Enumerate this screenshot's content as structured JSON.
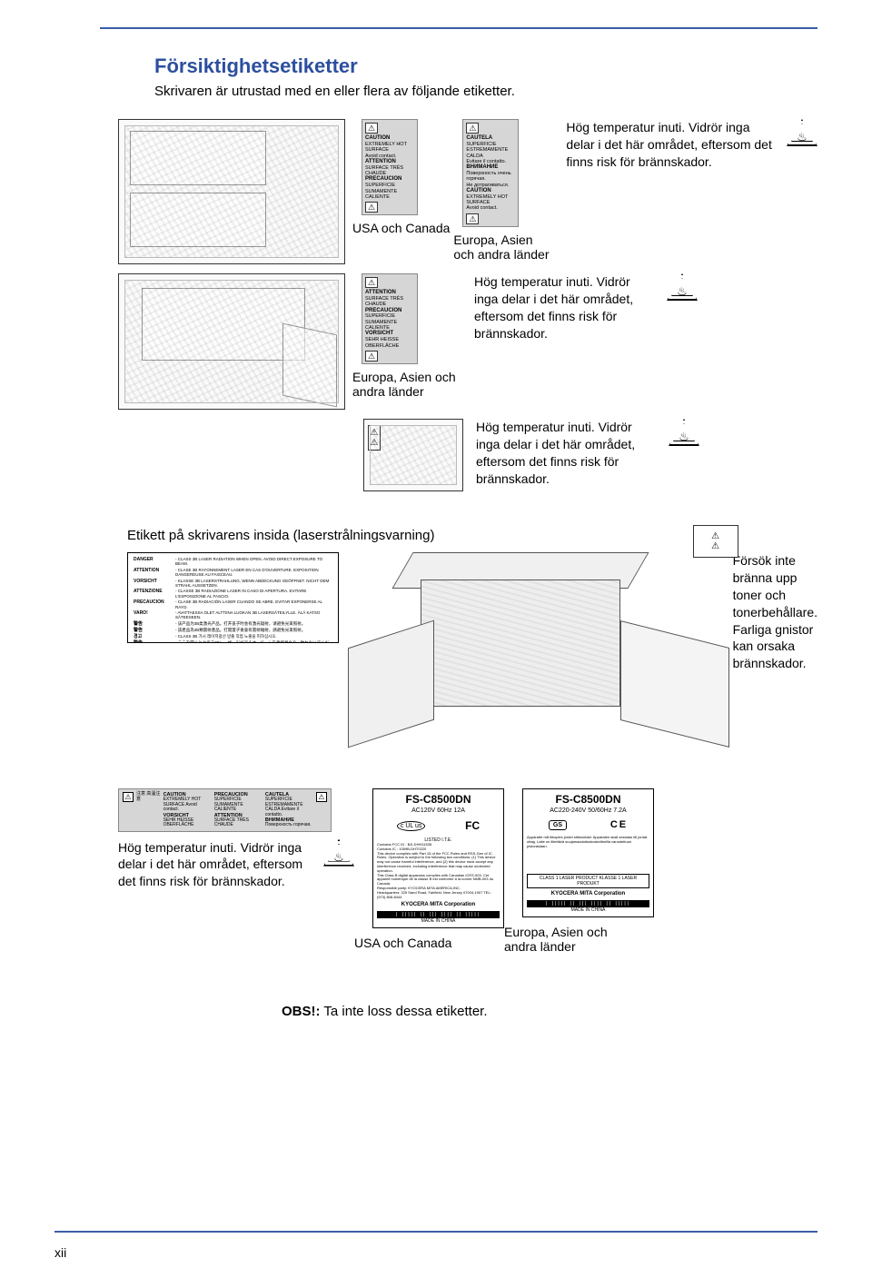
{
  "colors": {
    "accent": "#2c4f9e",
    "rule": "#3a5da8",
    "label_bg": "#d6d6d6"
  },
  "page_number": "xii",
  "heading": "Försiktighetsetiketter",
  "subtitle": "Skrivaren är utrustad med en eller flera av följande etiketter.",
  "warning": {
    "title": "Hög temperatur inuti.",
    "body": "Vidrör inga delar i det här området, eftersom det finns risk för brännskador."
  },
  "captions": {
    "usa_canada": "USA och Canada",
    "europe": "Europa, Asien och andra länder"
  },
  "label_usa": {
    "h1": "CAUTION",
    "t1": "EXTREMELY HOT SURFACE",
    "t1b": "Avoid contact.",
    "h2": "ATTENTION",
    "t2": "SURFACE TRÈS CHAUDE",
    "h3": "PRECAUCION",
    "t3": "SUPERFICIE SUMAMENTE CALIENTE"
  },
  "label_eu": {
    "h1": "CAUTELA",
    "t1": "SUPERFICIE ESTREMAMENTE CALDA",
    "t1b": "Evitare il contatto.",
    "h2": "ВНИМАНИЕ",
    "t2": "Поверхность очень горячая.",
    "t2b": "Не дотрагиваться.",
    "h3": "CAUTION",
    "t3": "EXTREMELY HOT SURFACE",
    "t3b": "Avoid contact."
  },
  "label_side": {
    "h1": "ATTENTION",
    "t1": "SURFACE TRÈS CHAUDE",
    "h2": "PRECAUCION",
    "t2": "SUPERFICIE SUMAMENTE CALIENTE",
    "h3": "VORSICHT",
    "t3": "SEHR HEISSE OBERFLÄCHE"
  },
  "section2": {
    "title": "Etikett på skrivarens insida (laserstrålningsvarning)",
    "box_rows": [
      {
        "k": "DANGER",
        "v": "- CLASS 3B LASER RADIATION WHEN OPEN. AVOID DIRECT EXPOSURE TO BEAM."
      },
      {
        "k": "ATTENTION",
        "v": "- CLASE 3B RAYONNEMENT LASER EN CAS D'OUVERTURE. EXPOSITION DANGEREUSE AU FAISCEAU."
      },
      {
        "k": "VORSICHT",
        "v": "- KLASSE 3B LASERSTRAHLUNG, WENN ABDECKUNG GEÖFFNET. NICHT DEM STRAHL AUSSETZEN."
      },
      {
        "k": "ATTENZIONE",
        "v": "- CLASSE 3B RADIAZIONE LASER IN CASO DI APERTURA. EVITARE L'ESPOSIZIONE AL FASCIO."
      },
      {
        "k": "PRECAUCION",
        "v": "- CLASE 3B RADIACIÓN LASER CUANDO SE ABRE. EVITAR EXPONERSE AL RAYO."
      },
      {
        "k": "VARO!",
        "v": "- AVATTAESSA OLET ALTTIINA LUOKAN 3B LASERSÄTEILYLLE. ÄLÄ KATSO SÄTEESEEN."
      },
      {
        "k": "警告",
        "v": "- 该产品为3B类激光产品。打开盖子时会有激光辐射，请避免光束照射。"
      },
      {
        "k": "警告",
        "v": "- 該產品為3B類雷射產品。打開蓋子後會有雷射輻射，請避免光束照射。"
      },
      {
        "k": "경고",
        "v": "- CLASS 3B 가시 레이저광선 방출  직접 노출을 피하십시오."
      },
      {
        "k": "警告",
        "v": "- ここを開くとクラス3Bレーザー光がでます。ビームを直接見たり、触れないでください。"
      }
    ],
    "toner_warning": "Försök inte bränna upp toner och tonerbehållare. Farliga gnistor kan orsaka brännskador."
  },
  "horiz_label": {
    "c1h": "CAUTION",
    "c1t": "EXTREMELY HOT SURFACE Avoid contact.",
    "c2h": "PRECAUCION",
    "c2t": "SUPERFICIE SUMAMENTE CALIENTE",
    "c3h": "CAUTELA",
    "c3t": "SUPERFICIE ESTREMAMENTE CALDA Evitare il contatto.",
    "c4h": "VORSICHT",
    "c4t": "SEHR HEISSE OBERFLÄCHE",
    "c5h": "ATTENTION",
    "c5t": "SURFACE TRÈS CHAUDE",
    "c6h": "ВНИМАНИЕ",
    "c6t": "Поверхность горячая.",
    "jp": "注意 高温注意"
  },
  "bottom_warning": "Hög temperatur inuti. Vidrör inga delar i det här området, eftersom det finns risk för brännskador.",
  "plate1": {
    "model": "FS-C8500DN",
    "spec": "AC120V   60Hz   12A",
    "listed": "LISTED  I.T.E.",
    "fcc_id": "Contains FCC ID : BJI-DHH11535",
    "ic": "Contains IC : 1059B-DHT0220",
    "fine1": "This device complies with Part 15 of the FCC Rules and RSS-Gen of IC Rules. Operation is subject to the following two conditions: (1) This device may not cause harmful interference, and (2) this device must accept any interference received, including interference that may cause undesired operation.",
    "fine2": "This Class B digital apparatus complies with Canadian ICES-003. Cet appareil numérique de la classe B est conforme à la norme NMB-003 du Canada.",
    "resp": "Responsible party: KYOCERA MITA AMERICA,INC. ",
    "addr": "Headquarters: 225 Sand Road, Fairfield, New Jersey 07004-1907 TEL: (973) 808-8444",
    "corp": "KYOCERA MITA Corporation",
    "made": "MADE IN CHINA",
    "ul": "c UL us",
    "fc": "FC"
  },
  "plate2": {
    "model": "FS-C8500DN",
    "spec": "AC220-240V   50/60Hz   7.2A",
    "fine1": "Apparatet må tilkoples jordet stikkontakt. Apparaten skall anslutas till jordat uttag. Laite on liitettävä suojamaadoituskoskettimilla varustettuun pistorasiaan.",
    "laserbox": "CLASS 1 LASER PRODUCT\nKLASSE 1 LASER PRODUKT",
    "corp": "KYOCERA MITA Corporation",
    "made": "MADE IN CHINA",
    "gs": "GS",
    "ce": "CE"
  },
  "note_prefix": "OBS!:",
  "note_text": " Ta inte loss dessa etiketter."
}
